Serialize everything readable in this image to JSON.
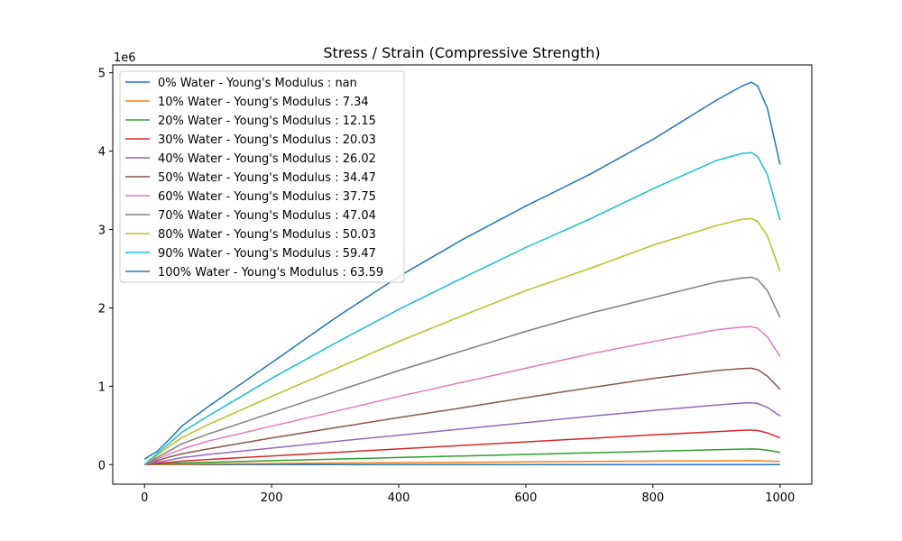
{
  "chart_data": {
    "type": "line",
    "title": "Stress / Strain (Compressive Strength)",
    "xlabel": "",
    "ylabel": "",
    "y_offset_label": "1e6",
    "xlim": [
      -50,
      1050
    ],
    "ylim": [
      -0.25,
      5.1
    ],
    "x_ticks": [
      0,
      200,
      400,
      600,
      800,
      1000
    ],
    "y_ticks": [
      0,
      1,
      2,
      3,
      4,
      5
    ],
    "grid": false,
    "legend_position": "upper-left",
    "x": [
      0,
      20,
      40,
      60,
      80,
      100,
      200,
      300,
      400,
      500,
      600,
      700,
      800,
      900,
      940,
      955,
      965,
      980,
      1000
    ],
    "series": [
      {
        "name": "0% Water - Young's Modulus : nan",
        "color": "#1f77b4",
        "values": [
          0,
          0,
          0,
          0,
          0,
          0,
          0,
          0,
          0,
          0,
          0,
          0,
          0,
          0,
          0,
          0,
          0,
          0,
          0
        ]
      },
      {
        "name": "10% Water - Young's Modulus : 7.34",
        "color": "#ff7f0e",
        "values": [
          0,
          0.002,
          0.004,
          0.006,
          0.008,
          0.01,
          0.015,
          0.02,
          0.025,
          0.03,
          0.035,
          0.04,
          0.044,
          0.048,
          0.05,
          0.05,
          0.049,
          0.045,
          0.04
        ]
      },
      {
        "name": "20% Water - Young's Modulus : 12.15",
        "color": "#2ca02c",
        "values": [
          0,
          0.008,
          0.015,
          0.02,
          0.025,
          0.03,
          0.05,
          0.07,
          0.09,
          0.11,
          0.13,
          0.15,
          0.17,
          0.19,
          0.197,
          0.2,
          0.198,
          0.185,
          0.155
        ]
      },
      {
        "name": "30% Water - Young's Modulus : 20.03",
        "color": "#d62728",
        "values": [
          0,
          0.015,
          0.03,
          0.045,
          0.055,
          0.065,
          0.11,
          0.155,
          0.2,
          0.245,
          0.29,
          0.335,
          0.38,
          0.42,
          0.437,
          0.44,
          0.435,
          0.405,
          0.34
        ]
      },
      {
        "name": "40% Water - Young's Modulus : 26.02",
        "color": "#9467bd",
        "values": [
          0,
          0.03,
          0.06,
          0.09,
          0.11,
          0.13,
          0.21,
          0.295,
          0.375,
          0.455,
          0.535,
          0.615,
          0.69,
          0.76,
          0.785,
          0.79,
          0.78,
          0.73,
          0.62
        ]
      },
      {
        "name": "50% Water - Young's Modulus : 34.47",
        "color": "#8c564b",
        "values": [
          0,
          0.05,
          0.1,
          0.14,
          0.17,
          0.2,
          0.34,
          0.47,
          0.6,
          0.725,
          0.855,
          0.98,
          1.1,
          1.2,
          1.225,
          1.23,
          1.21,
          1.13,
          0.96
        ]
      },
      {
        "name": "60% Water - Young's Modulus : 37.75",
        "color": "#e377c2",
        "values": [
          0,
          0.07,
          0.14,
          0.2,
          0.25,
          0.3,
          0.49,
          0.68,
          0.87,
          1.05,
          1.23,
          1.41,
          1.57,
          1.72,
          1.755,
          1.76,
          1.74,
          1.63,
          1.38
        ]
      },
      {
        "name": "70% Water - Young's Modulus : 47.04",
        "color": "#7f7f7f",
        "values": [
          0,
          0.09,
          0.18,
          0.27,
          0.33,
          0.39,
          0.66,
          0.93,
          1.2,
          1.45,
          1.7,
          1.93,
          2.13,
          2.33,
          2.38,
          2.39,
          2.36,
          2.22,
          1.88
        ]
      },
      {
        "name": "80% Water - Young's Modulus : 50.03",
        "color": "#bcbd22",
        "values": [
          0,
          0.12,
          0.24,
          0.35,
          0.43,
          0.51,
          0.87,
          1.22,
          1.57,
          1.9,
          2.22,
          2.5,
          2.8,
          3.05,
          3.13,
          3.14,
          3.1,
          2.92,
          2.47
        ]
      },
      {
        "name": "90% Water - Young's Modulus : 59.47",
        "color": "#17becf",
        "values": [
          0,
          0.14,
          0.28,
          0.42,
          0.52,
          0.62,
          1.1,
          1.55,
          1.98,
          2.38,
          2.77,
          3.13,
          3.52,
          3.88,
          3.97,
          3.98,
          3.93,
          3.7,
          3.12
        ]
      },
      {
        "name": "100% Water - Young's Modulus : 63.59",
        "color": "#1f77b4",
        "values": [
          0.07,
          0.17,
          0.33,
          0.5,
          0.62,
          0.74,
          1.3,
          1.87,
          2.4,
          2.87,
          3.3,
          3.7,
          4.15,
          4.65,
          4.83,
          4.88,
          4.83,
          4.55,
          3.83
        ]
      }
    ]
  }
}
